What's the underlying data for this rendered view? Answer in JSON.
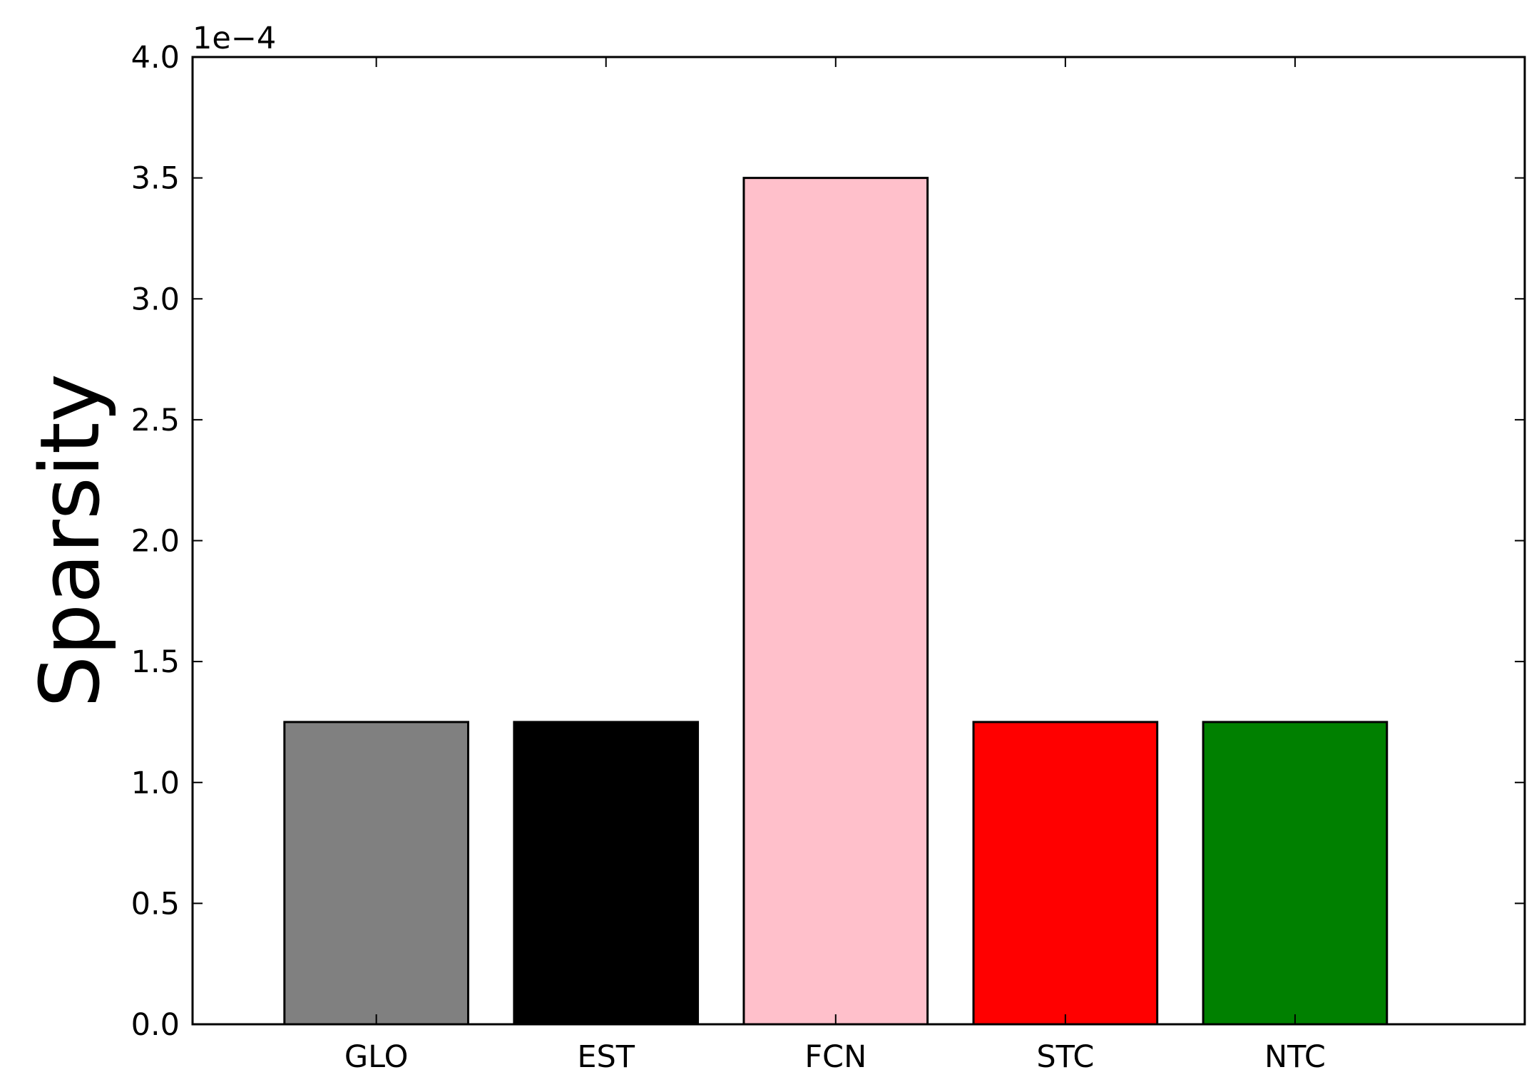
{
  "chart_data": {
    "type": "bar",
    "categories": [
      "GLO",
      "EST",
      "FCN",
      "STC",
      "NTC"
    ],
    "values": [
      0.000125,
      0.000125,
      0.00035,
      0.000125,
      0.000125
    ],
    "colors": [
      "#808080",
      "#000000",
      "#ffc0cb",
      "#ff0000",
      "#008000"
    ],
    "title": "",
    "xlabel": "",
    "ylabel": "Sparsity",
    "ylim": [
      0,
      0.0004
    ],
    "yticks": [
      "0.0",
      "0.5",
      "1.0",
      "1.5",
      "2.0",
      "2.5",
      "3.0",
      "3.5",
      "4.0"
    ],
    "y_offset_label": "1e−4",
    "grid": false,
    "legend": "none"
  }
}
